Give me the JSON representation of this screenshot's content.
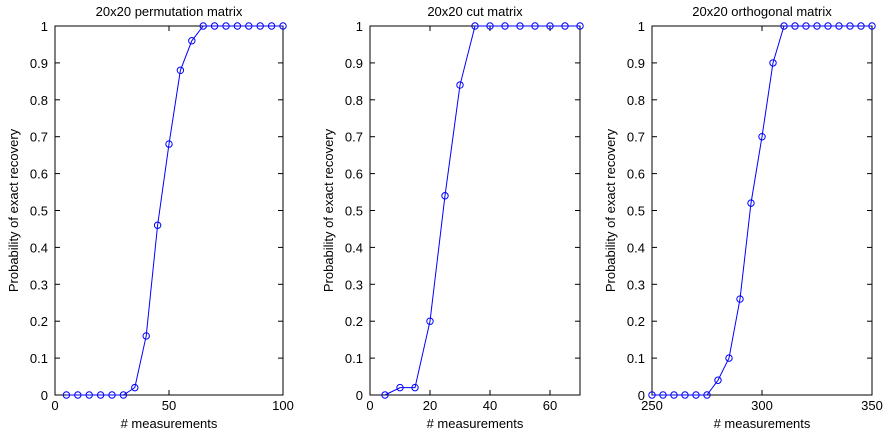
{
  "chart_data": [
    {
      "type": "line",
      "title": "20x20 permutation matrix",
      "xlabel": "# measurements",
      "ylabel": "Probability of exact recovery",
      "xlim": [
        0,
        100
      ],
      "ylim": [
        0,
        1
      ],
      "xticks": [
        0,
        50,
        100
      ],
      "yticks": [
        0,
        0.1,
        0.2,
        0.3,
        0.4,
        0.5,
        0.6,
        0.7,
        0.8,
        0.9,
        1
      ],
      "grid": false,
      "color": "#0000ff",
      "marker": "circle",
      "x": [
        5,
        10,
        15,
        20,
        25,
        30,
        35,
        40,
        45,
        50,
        55,
        60,
        65,
        70,
        75,
        80,
        85,
        90,
        95,
        100
      ],
      "y": [
        0,
        0,
        0,
        0,
        0,
        0,
        0.02,
        0.16,
        0.46,
        0.68,
        0.88,
        0.96,
        1,
        1,
        1,
        1,
        1,
        1,
        1,
        1
      ]
    },
    {
      "type": "line",
      "title": "20x20 cut matrix",
      "xlabel": "# measurements",
      "ylabel": "Probability of exact recovery",
      "xlim": [
        0,
        70
      ],
      "ylim": [
        0,
        1
      ],
      "xticks": [
        0,
        20,
        40,
        60
      ],
      "yticks": [
        0,
        0.1,
        0.2,
        0.3,
        0.4,
        0.5,
        0.6,
        0.7,
        0.8,
        0.9,
        1
      ],
      "grid": false,
      "color": "#0000ff",
      "marker": "circle",
      "x": [
        5,
        10,
        15,
        20,
        25,
        30,
        35,
        40,
        45,
        50,
        55,
        60,
        65,
        70
      ],
      "y": [
        0,
        0.02,
        0.02,
        0.2,
        0.54,
        0.84,
        1,
        1,
        1,
        1,
        1,
        1,
        1,
        1
      ]
    },
    {
      "type": "line",
      "title": "20x20 orthogonal matrix",
      "xlabel": "# measurements",
      "ylabel": "Probability of exact recovery",
      "xlim": [
        250,
        350
      ],
      "ylim": [
        0,
        1
      ],
      "xticks": [
        250,
        300,
        350
      ],
      "yticks": [
        0,
        0.1,
        0.2,
        0.3,
        0.4,
        0.5,
        0.6,
        0.7,
        0.8,
        0.9,
        1
      ],
      "grid": false,
      "color": "#0000ff",
      "marker": "circle",
      "x": [
        250,
        255,
        260,
        265,
        270,
        275,
        280,
        285,
        290,
        295,
        300,
        305,
        310,
        315,
        320,
        325,
        330,
        335,
        340,
        345,
        350
      ],
      "y": [
        0,
        0,
        0,
        0,
        0,
        0,
        0.04,
        0.1,
        0.26,
        0.52,
        0.7,
        0.9,
        1,
        1,
        1,
        1,
        1,
        1,
        1,
        1,
        1
      ]
    }
  ]
}
